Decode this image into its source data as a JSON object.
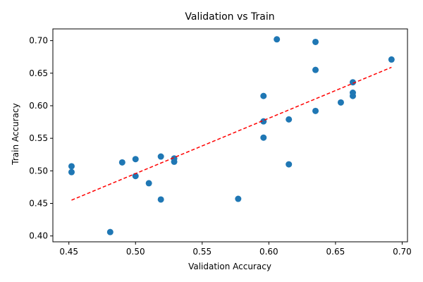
{
  "chart_data": {
    "type": "scatter",
    "title": "Validation vs Train",
    "xlabel": "Validation Accuracy",
    "ylabel": "Train Accuracy",
    "xlim": [
      0.438,
      0.704
    ],
    "ylim": [
      0.391,
      0.718
    ],
    "xticks": [
      "0.45",
      "0.50",
      "0.55",
      "0.60",
      "0.65",
      "0.70"
    ],
    "yticks": [
      "0.40",
      "0.45",
      "0.50",
      "0.55",
      "0.60",
      "0.65",
      "0.70"
    ],
    "xtick_values": [
      0.45,
      0.5,
      0.55,
      0.6,
      0.65,
      0.7
    ],
    "ytick_values": [
      0.4,
      0.45,
      0.5,
      0.55,
      0.6,
      0.65,
      0.7
    ],
    "grid": false,
    "points": [
      {
        "x": 0.452,
        "y": 0.507
      },
      {
        "x": 0.452,
        "y": 0.498
      },
      {
        "x": 0.481,
        "y": 0.406
      },
      {
        "x": 0.49,
        "y": 0.513
      },
      {
        "x": 0.5,
        "y": 0.518
      },
      {
        "x": 0.5,
        "y": 0.492
      },
      {
        "x": 0.51,
        "y": 0.481
      },
      {
        "x": 0.519,
        "y": 0.522
      },
      {
        "x": 0.519,
        "y": 0.456
      },
      {
        "x": 0.529,
        "y": 0.519
      },
      {
        "x": 0.529,
        "y": 0.514
      },
      {
        "x": 0.577,
        "y": 0.457
      },
      {
        "x": 0.596,
        "y": 0.615
      },
      {
        "x": 0.596,
        "y": 0.576
      },
      {
        "x": 0.596,
        "y": 0.551
      },
      {
        "x": 0.606,
        "y": 0.702
      },
      {
        "x": 0.615,
        "y": 0.579
      },
      {
        "x": 0.615,
        "y": 0.51
      },
      {
        "x": 0.635,
        "y": 0.698
      },
      {
        "x": 0.635,
        "y": 0.655
      },
      {
        "x": 0.635,
        "y": 0.592
      },
      {
        "x": 0.654,
        "y": 0.605
      },
      {
        "x": 0.663,
        "y": 0.636
      },
      {
        "x": 0.663,
        "y": 0.62
      },
      {
        "x": 0.663,
        "y": 0.615
      },
      {
        "x": 0.692,
        "y": 0.671
      }
    ],
    "trend_line": {
      "x": [
        0.452,
        0.692
      ],
      "y": [
        0.455,
        0.659
      ],
      "color": "#ff0000",
      "style": "dashed"
    },
    "marker_color": "#1f77b4"
  }
}
